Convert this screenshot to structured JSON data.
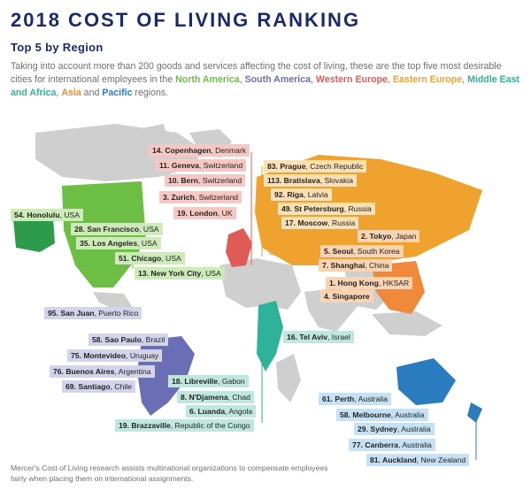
{
  "header": {
    "title": "2018 COST OF LIVING RANKING",
    "subtitle": "Top 5 by Region",
    "intro": {
      "before": "Taking into account more than 200 goods and services affecting the cost of living, these are the top five most desirable cities for international employees in the",
      "north_america": "North America",
      "comma1": ",",
      "south_america": "South America",
      "comma2": ",",
      "western_europe": "Western Europe",
      "comma3": ",",
      "eastern_europe": "Eastern Europe",
      "comma4": ",",
      "middle_east_africa": "Middle East and Africa",
      "comma5": ",",
      "asia": "Asia",
      "and": "and",
      "pacific": "Pacific",
      "after": "regions."
    }
  },
  "colors": {
    "north_america": "#6cbe45",
    "south_america": "#6a6fb5",
    "western_europe": "#e05b55",
    "eastern_europe": "#f0a22e",
    "middle_east_africa": "#2fb29a",
    "asia": "#f08a3a",
    "pacific": "#2b7bbf"
  },
  "regions": {
    "western_europe": [
      {
        "rank": "14.",
        "city": "Copenhagen",
        "country": ", Denmark"
      },
      {
        "rank": "11.",
        "city": "Geneva",
        "country": ", Switzerland"
      },
      {
        "rank": "10.",
        "city": "Bern",
        "country": ", Switzerland"
      },
      {
        "rank": "3.",
        "city": "Zurich",
        "country": ", Switzerland"
      },
      {
        "rank": "19.",
        "city": "London",
        "country": ", UK"
      }
    ],
    "eastern_europe": [
      {
        "rank": "83.",
        "city": "Prague",
        "country": ", Czech Republic"
      },
      {
        "rank": "113.",
        "city": "Bratislava",
        "country": ", Slovakia"
      },
      {
        "rank": "92.",
        "city": "Riga",
        "country": ", Latvia"
      },
      {
        "rank": "49.",
        "city": "St Petersburg",
        "country": ", Russia"
      },
      {
        "rank": "17.",
        "city": "Moscow",
        "country": ", Russia"
      }
    ],
    "asia": [
      {
        "rank": "2.",
        "city": "Tokyo",
        "country": ", Japan"
      },
      {
        "rank": "5.",
        "city": "Seoul",
        "country": ", South Korea"
      },
      {
        "rank": "7.",
        "city": "Shanghai",
        "country": ", China"
      },
      {
        "rank": "1.",
        "city": "Hong Kong",
        "country": ", HKSAR"
      },
      {
        "rank": "4.",
        "city": "Singapore",
        "country": ""
      }
    ],
    "north_america": [
      {
        "rank": "54.",
        "city": "Honolulu",
        "country": ", USA"
      },
      {
        "rank": "28.",
        "city": "San Francisco",
        "country": ", USA"
      },
      {
        "rank": "35.",
        "city": "Los Angeles",
        "country": ", USA"
      },
      {
        "rank": "51.",
        "city": "Chicago",
        "country": ", USA"
      },
      {
        "rank": "13.",
        "city": "New York City",
        "country": ", USA"
      }
    ],
    "south_america": [
      {
        "rank": "95.",
        "city": "San Juan",
        "country": ", Puerto Rico"
      },
      {
        "rank": "58.",
        "city": "Sao Paulo",
        "country": ", Brazil"
      },
      {
        "rank": "75.",
        "city": "Montevideo",
        "country": ", Uruguay"
      },
      {
        "rank": "76.",
        "city": "Buenos Aires",
        "country": ", Argentina"
      },
      {
        "rank": "69.",
        "city": "Santiago",
        "country": ", Chile"
      }
    ],
    "middle_east_africa": [
      {
        "rank": "16.",
        "city": "Tel Aviv",
        "country": ", Israel"
      },
      {
        "rank": "18.",
        "city": "Libreville",
        "country": ", Gabon"
      },
      {
        "rank": "8.",
        "city": "N'Djamena",
        "country": ", Chad"
      },
      {
        "rank": "6.",
        "city": "Luanda",
        "country": ", Angola"
      },
      {
        "rank": "19.",
        "city": "Brazzaville",
        "country": ", Republic of the Congo"
      }
    ],
    "pacific": [
      {
        "rank": "61.",
        "city": "Perth",
        "country": ", Australia"
      },
      {
        "rank": "58.",
        "city": "Melbourne",
        "country": ", Australia"
      },
      {
        "rank": "29.",
        "city": "Sydney",
        "country": ", Australia"
      },
      {
        "rank": "77.",
        "city": "Canberra",
        "country": ", Australia"
      },
      {
        "rank": "81.",
        "city": "Auckland",
        "country": ", New Zealand"
      }
    ]
  },
  "footer": "Mercer's Cost of Living research assists multinational organizations to compensate employees fairly when placing them on international assignments."
}
